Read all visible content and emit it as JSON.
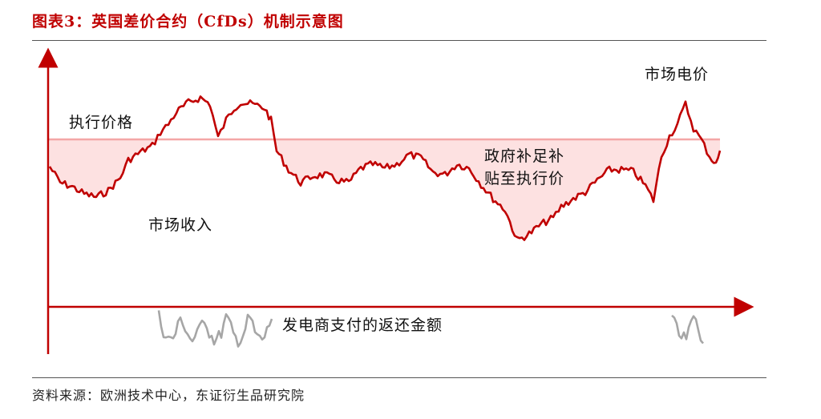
{
  "title": "图表3：英国差价合约（CfDs）机制示意图",
  "source": "资料来源：欧洲技术中心，东证衍生品研究院",
  "labels": {
    "strike_price": "执行价格",
    "market_price": "市场电价",
    "government_topup_line1": "政府补足补",
    "government_topup_line2": "贴至执行价",
    "market_revenue": "市场收入",
    "generator_payback": "发电商支付的返还金额"
  },
  "colors": {
    "title": "#c00000",
    "axis": "#c00000",
    "market_line": "#c00000",
    "strike_line": "#f4a6a6",
    "fill_topup": "#fde1e1",
    "payback_line": "#a6a6a6"
  }
}
